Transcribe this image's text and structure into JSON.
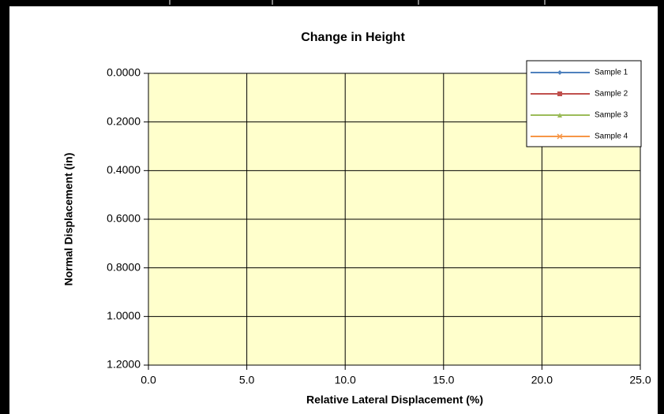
{
  "chart_data": {
    "type": "line",
    "title": "Change in Height",
    "x_label": "Relative Lateral Displacement (%)",
    "y_label": "Normal Displacement (in)",
    "x": [],
    "series": [
      {
        "name": "Sample 1",
        "color": "#4f81bd",
        "values": []
      },
      {
        "name": "Sample 2",
        "color": "#c0504d",
        "values": []
      },
      {
        "name": "Sample 3",
        "color": "#9bbb59",
        "values": []
      },
      {
        "name": "Sample 4",
        "color": "#f79646",
        "values": []
      }
    ],
    "xlim": [
      0,
      25
    ],
    "xticks": [
      {
        "value": 0,
        "label": "0.0"
      },
      {
        "value": 5,
        "label": "5.0"
      },
      {
        "value": 10,
        "label": "10.0"
      },
      {
        "value": 15,
        "label": "15.0"
      },
      {
        "value": 20,
        "label": "20.0"
      },
      {
        "value": 25,
        "label": "25.0"
      }
    ],
    "ylim": [
      0,
      1.2
    ],
    "y_reversed": true,
    "yticks": [
      {
        "value": 0,
        "label": "0.0000"
      },
      {
        "value": 0.2,
        "label": "0.2000"
      },
      {
        "value": 0.4,
        "label": "0.4000"
      },
      {
        "value": 0.6,
        "label": "0.6000"
      },
      {
        "value": 0.8,
        "label": "0.8000"
      },
      {
        "value": 1.0,
        "label": "1.0000"
      },
      {
        "value": 1.2,
        "label": "1.2000"
      }
    ],
    "grid": true,
    "legend": "upper right",
    "plot_background": "#ffffcc"
  }
}
